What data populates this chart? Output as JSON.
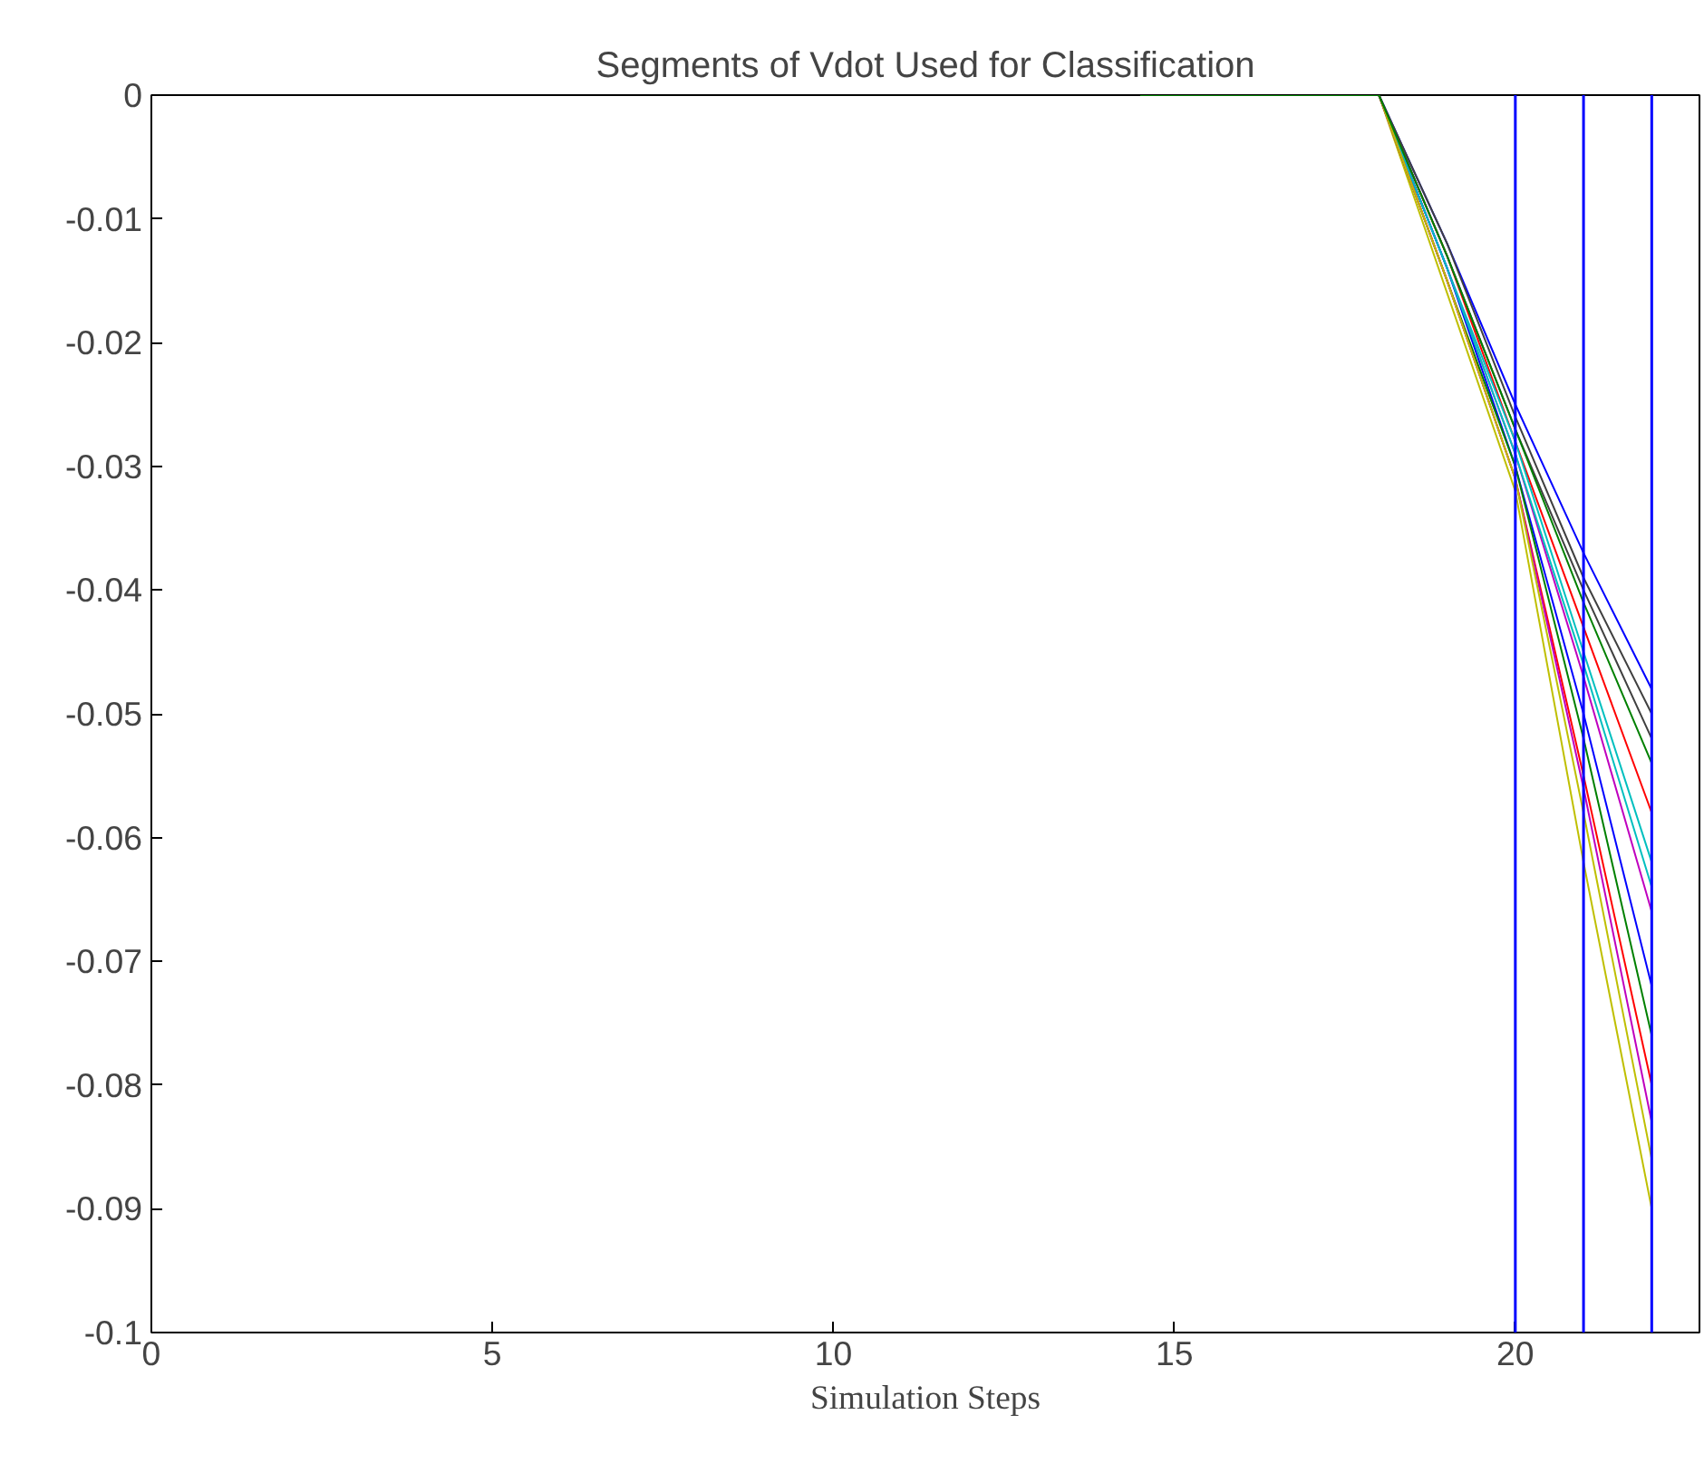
{
  "chart_data": {
    "type": "line",
    "title": "Segments of Vdot Used for Classification",
    "xlabel": "Simulation Steps",
    "x": [
      14.5,
      18,
      19,
      20,
      21,
      22
    ],
    "series": [
      {
        "color": "#0000ff",
        "x": [
          18,
          19,
          20,
          21,
          22
        ],
        "values": [
          0,
          -0.012,
          -0.025,
          -0.037,
          -0.048
        ]
      },
      {
        "color": "#ff0000",
        "x": [
          18,
          19,
          20,
          21,
          22
        ],
        "values": [
          0,
          -0.013,
          -0.028,
          -0.043,
          -0.058
        ]
      },
      {
        "color": "#00bfbf",
        "x": [
          18,
          19,
          20,
          21,
          22
        ],
        "values": [
          0,
          -0.014,
          -0.028,
          -0.045,
          -0.062
        ]
      },
      {
        "color": "#bf00bf",
        "x": [
          18,
          19,
          20,
          21,
          22
        ],
        "values": [
          0,
          -0.014,
          -0.029,
          -0.047,
          -0.066
        ]
      },
      {
        "color": "#bfbf00",
        "x": [
          18,
          19,
          20,
          21,
          22
        ],
        "values": [
          0,
          -0.016,
          -0.032,
          -0.062,
          -0.09
        ]
      },
      {
        "color": "#404040",
        "x": [
          18,
          19,
          20,
          21,
          22
        ],
        "values": [
          0,
          -0.013,
          -0.027,
          -0.04,
          -0.052
        ]
      },
      {
        "color": "#0000ff",
        "x": [
          18,
          19,
          20,
          21,
          22
        ],
        "values": [
          0,
          -0.014,
          -0.03,
          -0.05,
          -0.072
        ]
      },
      {
        "color": "#008000",
        "x": [
          18,
          19,
          20,
          21,
          22
        ],
        "values": [
          0,
          -0.015,
          -0.03,
          -0.052,
          -0.076
        ]
      },
      {
        "color": "#ff0000",
        "x": [
          18,
          19,
          20,
          21,
          22
        ],
        "values": [
          0,
          -0.015,
          -0.031,
          -0.055,
          -0.08
        ]
      },
      {
        "color": "#00bfbf",
        "x": [
          18,
          19,
          20,
          21,
          22
        ],
        "values": [
          0,
          -0.014,
          -0.029,
          -0.046,
          -0.064
        ]
      },
      {
        "color": "#bf00bf",
        "x": [
          18,
          19,
          20,
          21,
          22
        ],
        "values": [
          0,
          -0.015,
          -0.031,
          -0.056,
          -0.083
        ]
      },
      {
        "color": "#bfbf00",
        "x": [
          18,
          19,
          20,
          21,
          22
        ],
        "values": [
          0,
          -0.015,
          -0.031,
          -0.058,
          -0.086
        ]
      },
      {
        "color": "#404040",
        "x": [
          18,
          19,
          20,
          21,
          22
        ],
        "values": [
          0,
          -0.012,
          -0.026,
          -0.039,
          -0.05
        ]
      },
      {
        "color": "#008000",
        "values": [
          0,
          0,
          -0.013,
          -0.027,
          -0.041,
          -0.054
        ]
      }
    ],
    "xlim": [
      0,
      22.7
    ],
    "ylim": [
      -0.1,
      0
    ],
    "xticks": [
      0,
      5,
      10,
      15,
      20
    ],
    "yticks": [
      0,
      -0.01,
      -0.02,
      -0.03,
      -0.04,
      -0.05,
      -0.06,
      -0.07,
      -0.08,
      -0.09,
      -0.1
    ],
    "ref_lines": [
      {
        "axis": "x",
        "value": 20,
        "color": "#0000ff"
      },
      {
        "axis": "x",
        "value": 21,
        "color": "#0000ff"
      },
      {
        "axis": "x",
        "value": 22,
        "color": "#0000ff"
      }
    ],
    "grid": false
  }
}
